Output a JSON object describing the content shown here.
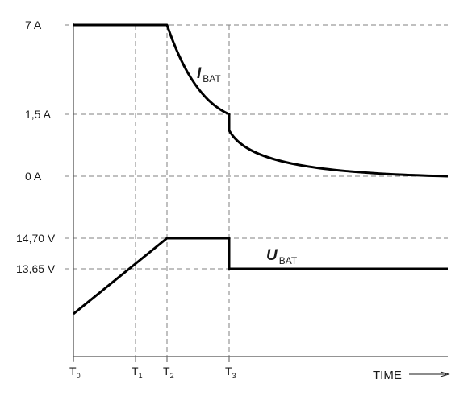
{
  "diagram": {
    "y_labels": {
      "i_max": "7 A",
      "i_mid": "1,5 A",
      "i_zero": "0 A",
      "u_max": "14,70 V",
      "u_float": "13,65 V"
    },
    "time_marks": [
      {
        "main": "T",
        "sub": "0"
      },
      {
        "main": "T",
        "sub": "1"
      },
      {
        "main": "T",
        "sub": "2"
      },
      {
        "main": "T",
        "sub": "3"
      }
    ],
    "time_axis_label": "TIME",
    "current_curve": {
      "symbol": "I",
      "subscript": "BAT"
    },
    "voltage_curve": {
      "symbol": "U",
      "subscript": "BAT"
    }
  }
}
